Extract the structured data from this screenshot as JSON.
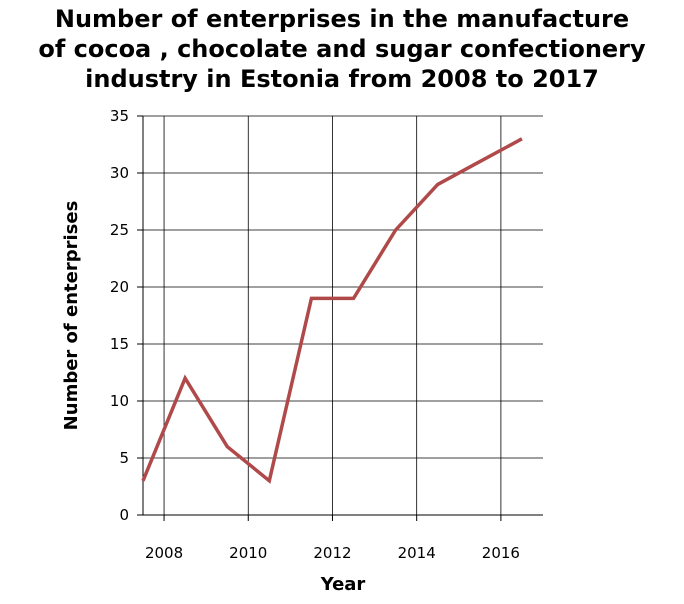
{
  "chart_data": {
    "type": "line",
    "title_lines": [
      "Number of enterprises in the manufacture",
      "of cocoa , chocolate and sugar confectionery",
      "industry in Estonia from 2008 to 2017"
    ],
    "xlabel": "Year",
    "ylabel": "Number of enterprises",
    "x_ticks": [
      2008,
      2010,
      2012,
      2014,
      2016
    ],
    "y_ticks": [
      0,
      5,
      10,
      15,
      20,
      25,
      30,
      35
    ],
    "xlim": [
      2007.5,
      2017
    ],
    "ylim": [
      0,
      35
    ],
    "grid": true,
    "line_color": "#b04a4a",
    "series": [
      {
        "x": [
          2007.5,
          2008.5,
          2009.5,
          2010.5,
          2011.5,
          2012.5,
          2013.5,
          2014.5,
          2015.5,
          2016.5
        ],
        "values": [
          3,
          12,
          6,
          3,
          19,
          19,
          25,
          29,
          31,
          33
        ]
      }
    ]
  }
}
